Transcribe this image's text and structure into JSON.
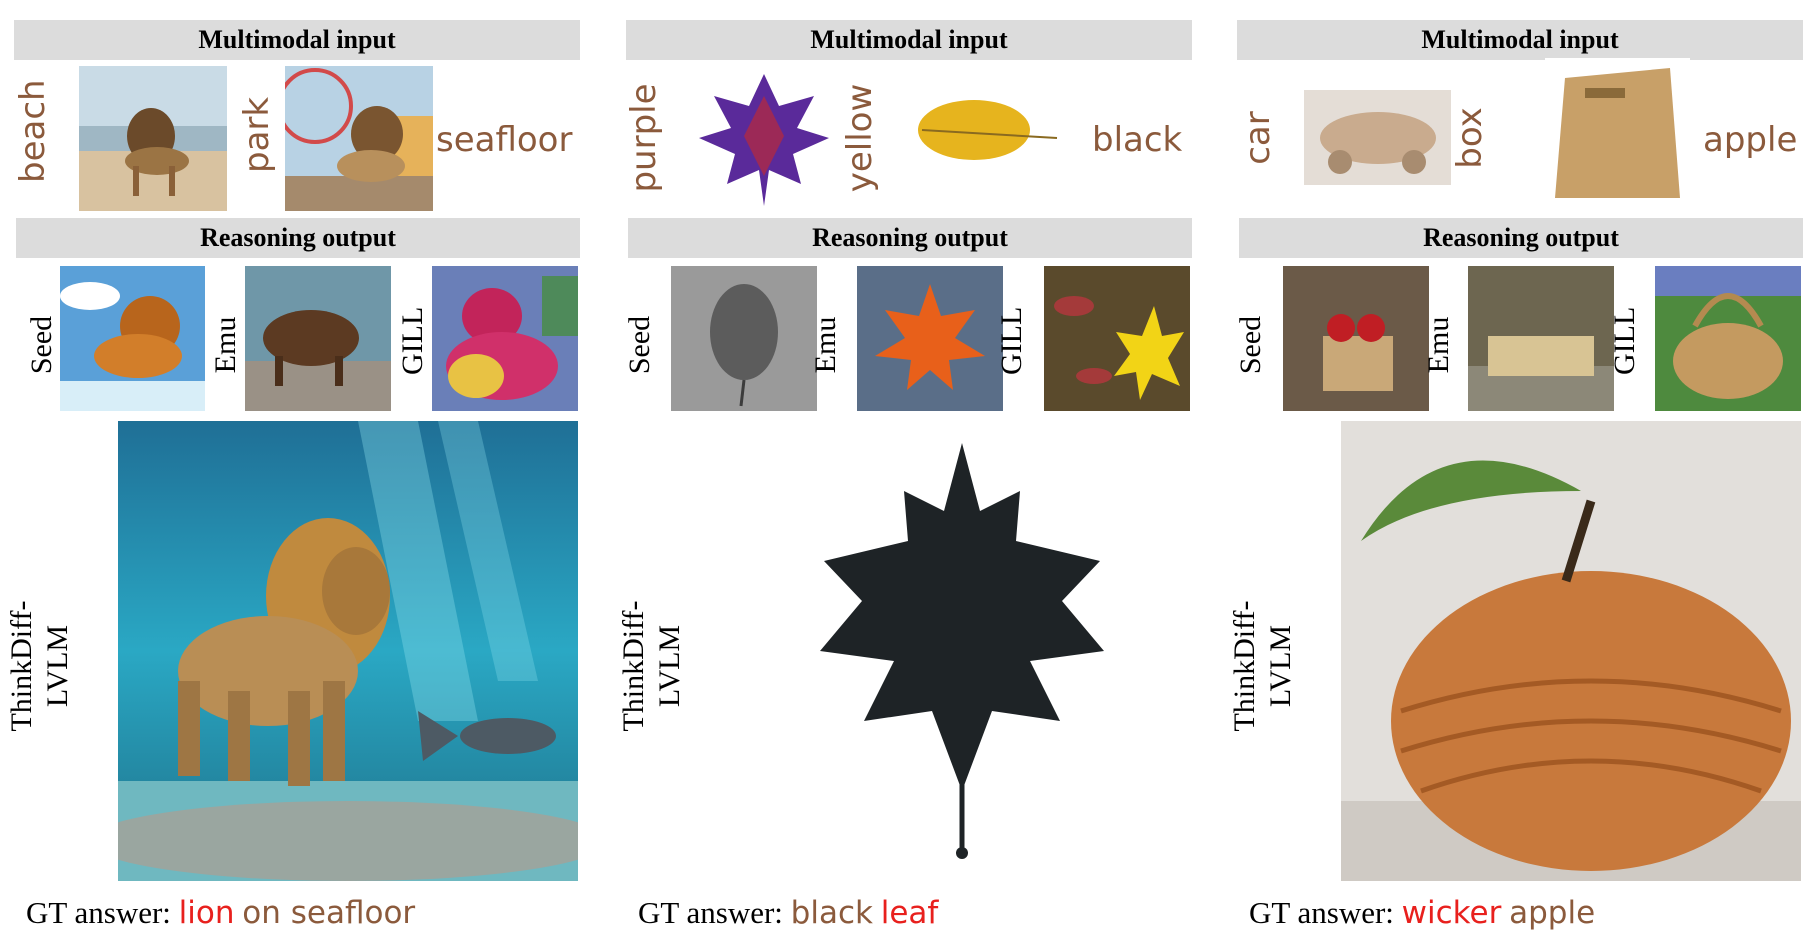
{
  "panels": [
    {
      "input_header": "Multimodal input",
      "input_words": [
        "beach",
        "park",
        "seafloor"
      ],
      "output_header": "Reasoning output",
      "models": [
        "Seed",
        "Emu",
        "GILL"
      ],
      "method_line1": "ThinkDiff-",
      "method_line2": "LVLM",
      "gt_prefix": "GT answer:",
      "gt_word1": "lion",
      "gt_word2": "on seafloor"
    },
    {
      "input_header": "Multimodal input",
      "input_words": [
        "purple",
        "yellow",
        "black"
      ],
      "output_header": "Reasoning output",
      "models": [
        "Seed",
        "Emu",
        "GILL"
      ],
      "method_line1": "ThinkDiff-",
      "method_line2": "LVLM",
      "gt_prefix": "GT answer:",
      "gt_word1": "black",
      "gt_word2": "leaf"
    },
    {
      "input_header": "Multimodal input",
      "input_words": [
        "car",
        "box",
        "apple"
      ],
      "output_header": "Reasoning output",
      "models": [
        "Seed",
        "Emu",
        "GILL"
      ],
      "method_line1": "ThinkDiff-",
      "method_line2": "LVLM",
      "gt_prefix": "GT answer:",
      "gt_word1": "wicker",
      "gt_word2": "apple"
    }
  ],
  "colors": {
    "header_bg": "#dcdcdc",
    "word_brown": "#8b5a3c",
    "answer_red": "#e8201d"
  }
}
